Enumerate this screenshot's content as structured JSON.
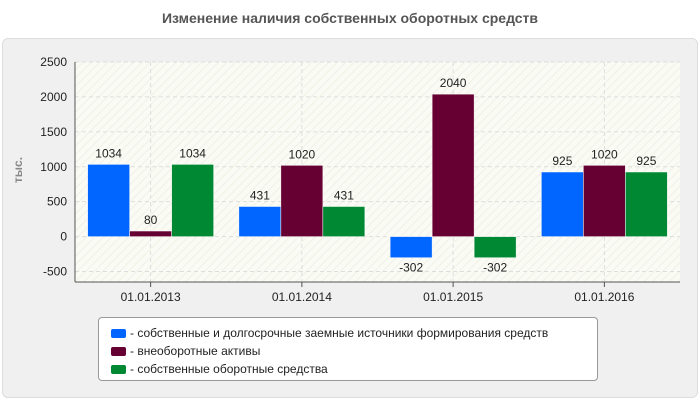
{
  "chart_data": {
    "type": "bar",
    "title": "Изменение наличия собственных оборотных средств",
    "ylabel": "тыс.",
    "xlabel": "",
    "categories": [
      "01.01.2013",
      "01.01.2014",
      "01.01.2015",
      "01.01.2016"
    ],
    "series": [
      {
        "name": "- собственные и долгосрочные заемные источники формирования средств",
        "color": "#0066ff",
        "values": [
          1034,
          431,
          -302,
          925
        ]
      },
      {
        "name": "- внеоборотные активы",
        "color": "#660033",
        "values": [
          80,
          1020,
          2040,
          1020
        ]
      },
      {
        "name": "- собственные оборотные средства",
        "color": "#008833",
        "values": [
          1034,
          431,
          -302,
          925
        ]
      }
    ],
    "ylim": [
      -650,
      2500
    ],
    "yticks": [
      -500,
      0,
      500,
      1000,
      1500,
      2000,
      2500
    ],
    "grid": true,
    "legend": "bottom"
  }
}
